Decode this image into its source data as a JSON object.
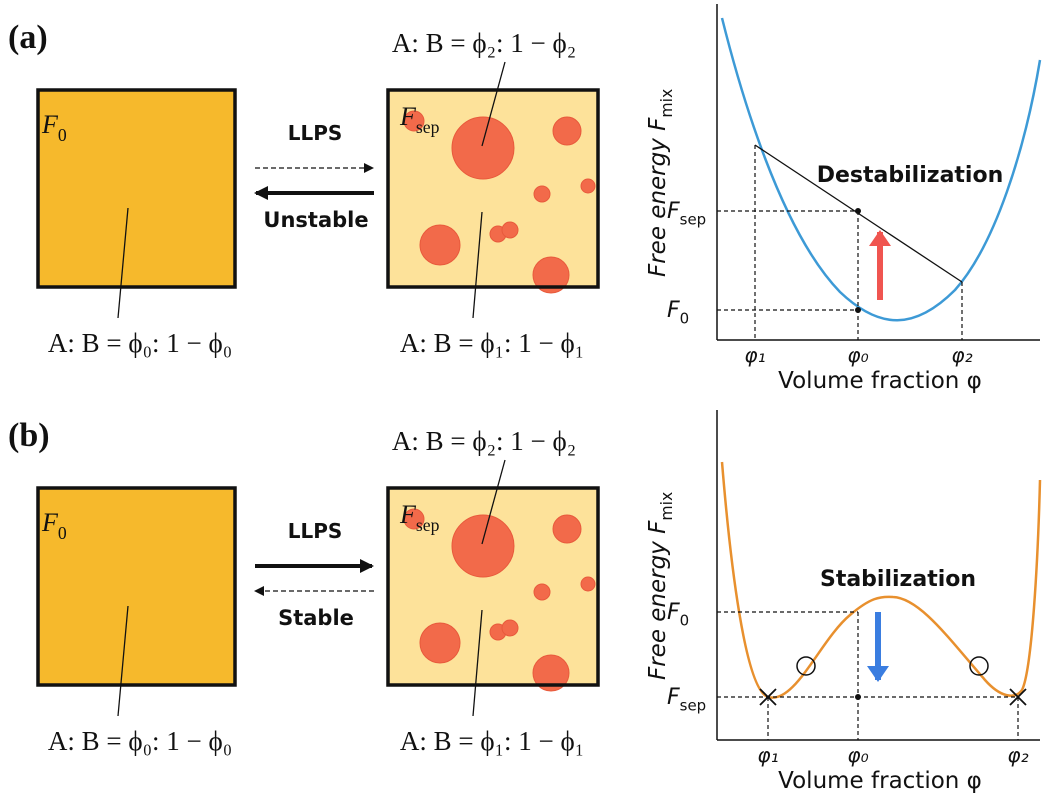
{
  "panel_a": {
    "label": "(a)",
    "left_box": {
      "energy": {
        "main": "F",
        "sub": "0"
      },
      "composition": "A: B = ϕ₀: 1 − ϕ₀"
    },
    "right_box": {
      "energy": {
        "main": "F",
        "sub": "sep"
      },
      "top_composition": "A: B = ϕ₂: 1 − ϕ₂",
      "bottom_composition": "A: B = ϕ₁: 1 − ϕ₁"
    },
    "arrow_label": "LLPS",
    "direction_label": "Unstable",
    "plot": {
      "y_axis": {
        "main": "Free energy F",
        "sub": "mix"
      },
      "x_axis": "Volume fraction φ",
      "annotation": "Destabilization",
      "y_ticks": [
        {
          "main": "F",
          "sub": "sep"
        },
        {
          "main": "F",
          "sub": "0"
        }
      ],
      "x_ticks": [
        "φ₁",
        "φ₀",
        "φ₂"
      ]
    }
  },
  "panel_b": {
    "label": "(b)",
    "left_box": {
      "energy": {
        "main": "F",
        "sub": "0"
      },
      "composition": "A: B = ϕ₀: 1 − ϕ₀"
    },
    "right_box": {
      "energy": {
        "main": "F",
        "sub": "sep"
      },
      "top_composition": "A: B = ϕ₂: 1 − ϕ₂",
      "bottom_composition": "A: B = ϕ₁: 1 − ϕ₁"
    },
    "arrow_label": "LLPS",
    "direction_label": "Stable",
    "plot": {
      "y_axis": {
        "main": "Free energy F",
        "sub": "mix"
      },
      "x_axis": "Volume fraction φ",
      "annotation": "Stabilization",
      "y_ticks": [
        {
          "main": "F",
          "sub": "0"
        },
        {
          "main": "F",
          "sub": "sep"
        }
      ],
      "x_ticks": [
        "φ₁",
        "φ₀",
        "φ₂"
      ]
    }
  }
}
